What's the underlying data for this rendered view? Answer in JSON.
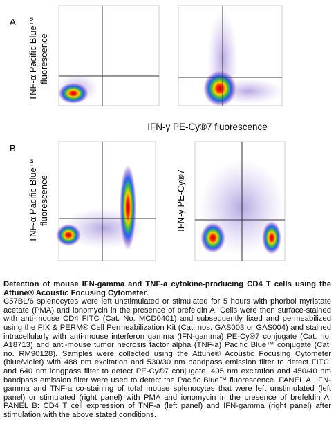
{
  "figure": {
    "panel_a": {
      "label": "A",
      "y_axis_label": [
        "TNF-α Pacific Blue™",
        "fluorescence"
      ],
      "x_axis_label": "IFN-γ PE-Cy®7 fluorescence"
    },
    "panel_b": {
      "label": "B",
      "left_y_axis_label": [
        "TNF-α Pacific Blue™",
        "fluorescence"
      ],
      "right_y_axis_label": "IFN-γ PE-Cy®7"
    }
  },
  "caption": {
    "title": "Detection of mouse IFN-gamma and TNF-a cytokine-producing CD4 T cells using the Attune® Acoustic Focusing Cytometer.",
    "body": "C57BL/6 splenocytes were left unstimulated or stimulated for 5 hours with phorbol myristate acetate (PMA) and ionomycin in the presence of brefeldin A. Cells were then surface-stained with anti-mouse CD4 FITC (Cat. No. MCD0401) and subsequently fixed and permeabilized using the FIX & PERM® Cell Permeabilization Kit (Cat. nos. GAS003 or GAS004) and stained intracellularly with anti-mouse interferon gamma (IFN-gamma) PE-Cy®7 conjugate (Cat. no. A18713) and anti-mouse tumor necrosis factor alpha (TNF-a) Pacific Blue™ conjugate (Cat. no. RM90128). Samples were collected using the Attune® Acoustic Focusing Cytometer (blue/violet) with 488 nm excitation and 530/30 nm bandpass emission filter to detect FITC, and 640 nm longpass filter to detect PE-Cy®7 conjugate. 405 nm excitation and 450/40 nm bandpass emission filter were used to detect the Pacific Blue™ fluorescence. PANEL A: IFN-gamma and TNF-a co-staining of total mouse splenocytes that were left unstimulated (left panel) or stimulated (right panel) with PMA and ionomycin in the presence of brefeldin A. PANEL B: CD4 T cell expression of TNF-a (left panel) and IFN-gamma (right panel) after stimulation with the above stated conditions."
  }
}
